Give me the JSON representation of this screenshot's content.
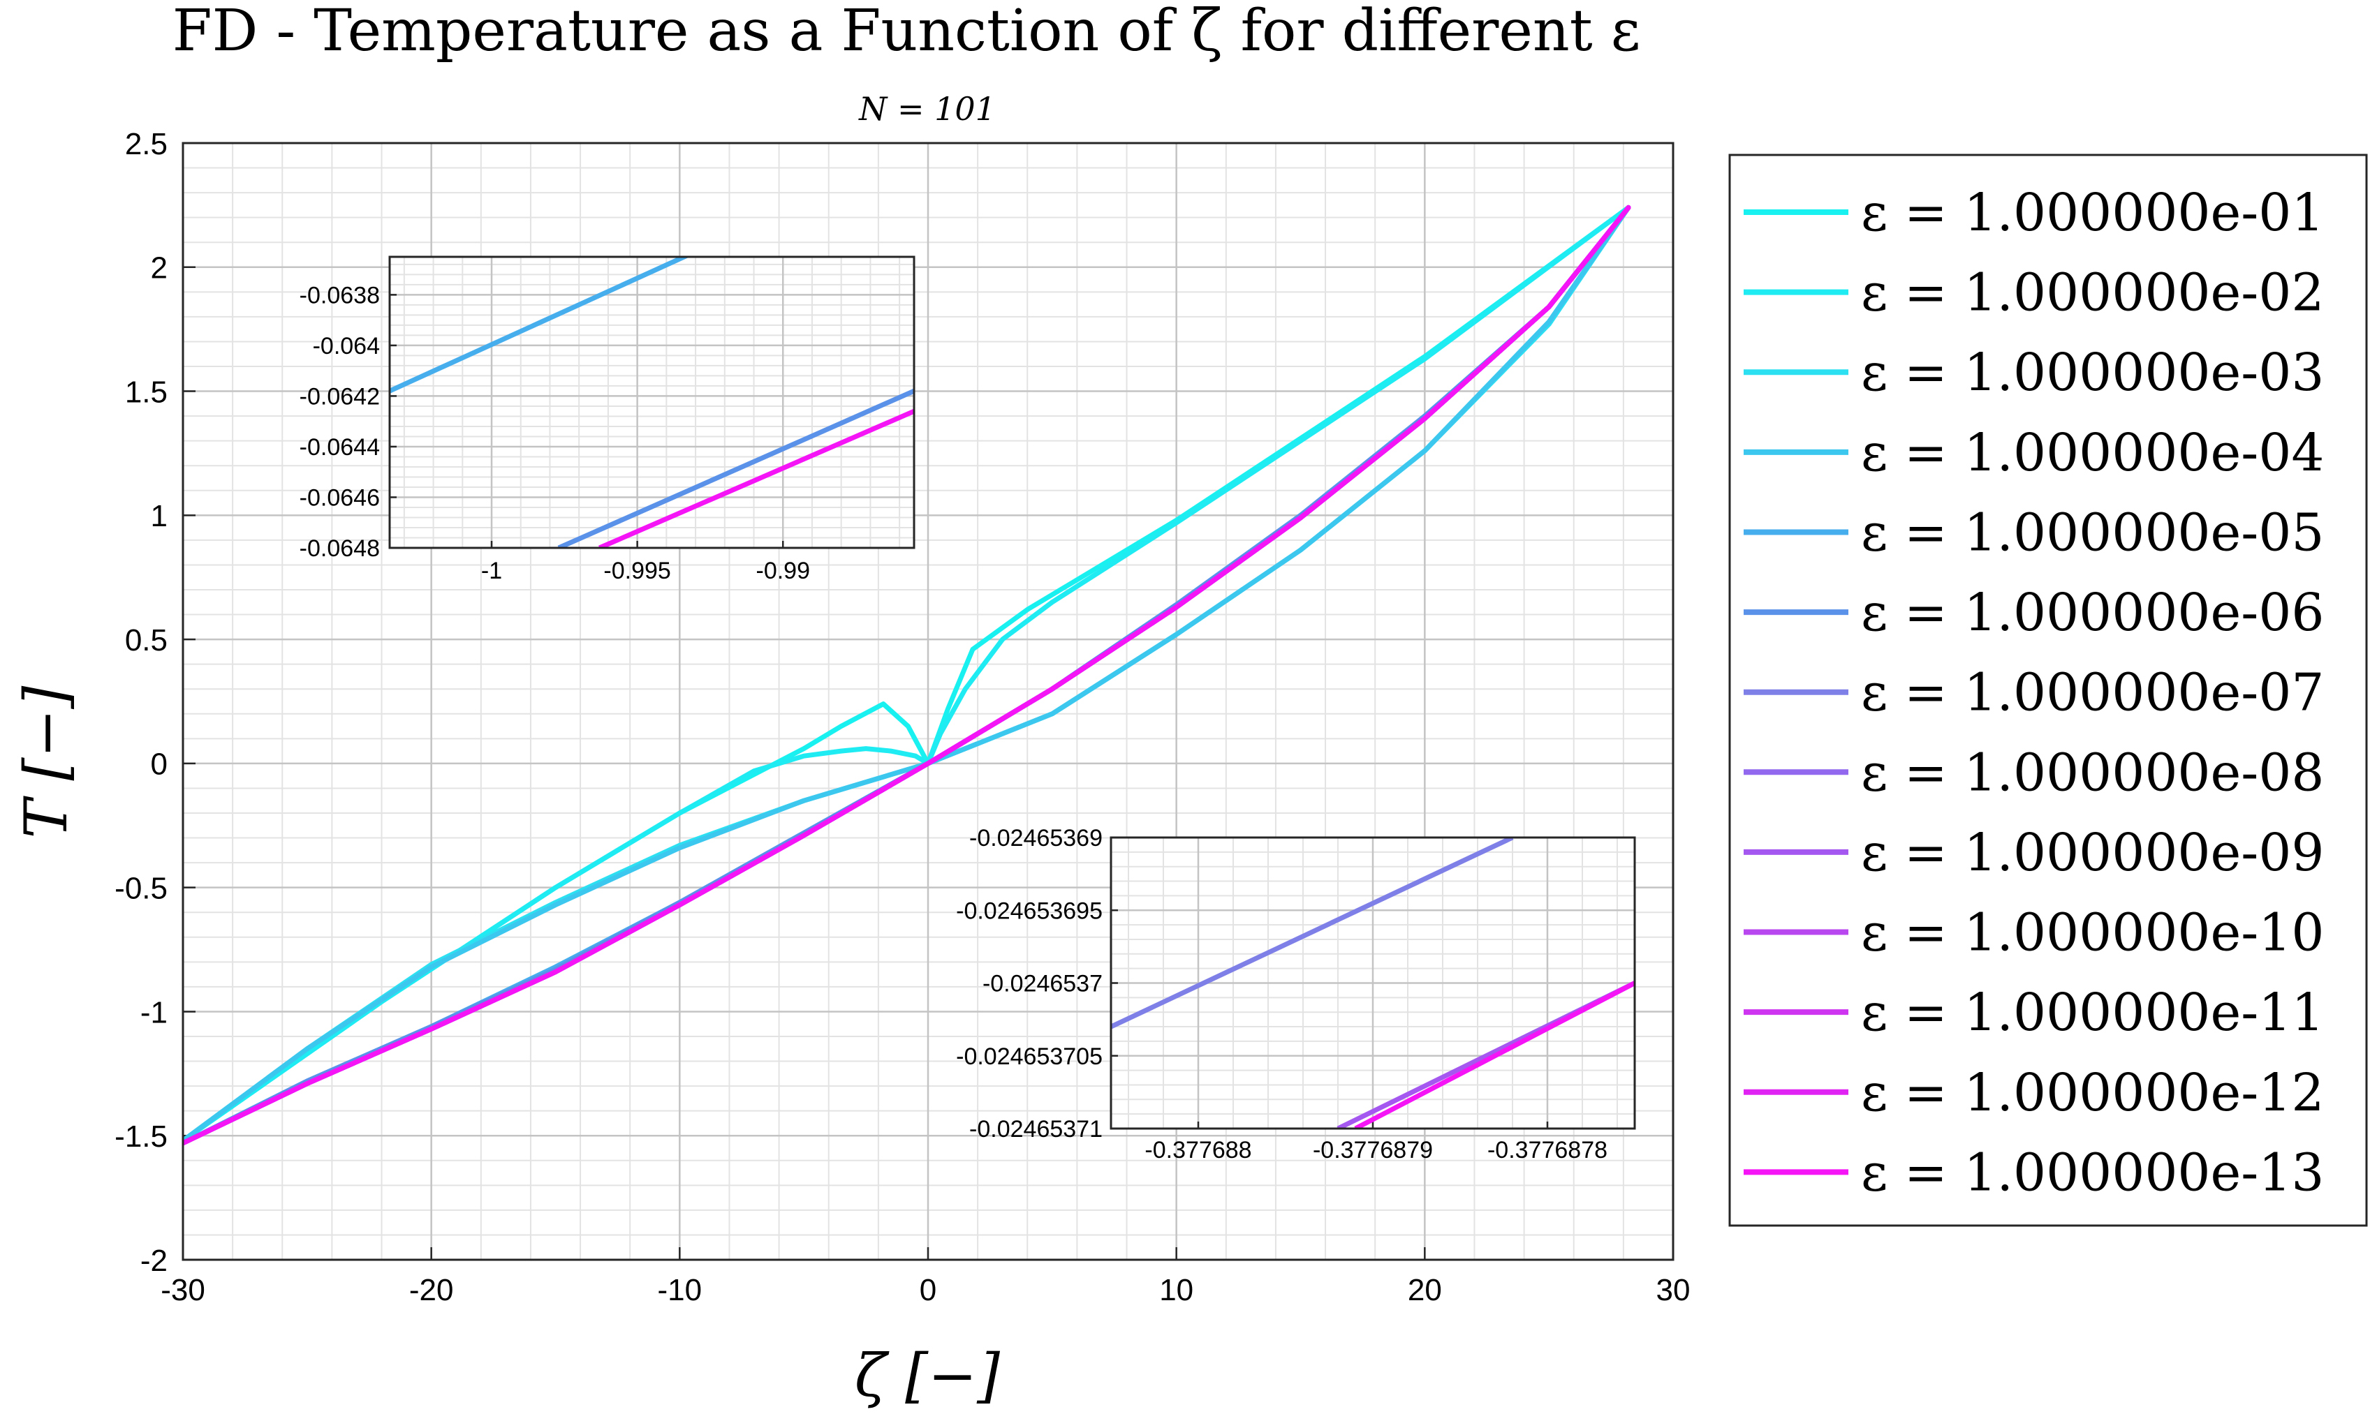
{
  "chart_data": {
    "type": "line",
    "title": "FD - Temperature as a Function of ζ for different ε",
    "subtitle": "N = 101",
    "xlabel": "ζ [−]",
    "ylabel": "T [−]",
    "xlim": [
      -30,
      30
    ],
    "ylim": [
      -2,
      2.5
    ],
    "xticks": [
      -30,
      -20,
      -10,
      0,
      10,
      20,
      30
    ],
    "xtick_labels": [
      "-30",
      "-20",
      "-10",
      "0",
      "10",
      "20",
      "30"
    ],
    "yticks": [
      -2,
      -1.5,
      -1,
      -0.5,
      0,
      0.5,
      1,
      1.5,
      2,
      2.5
    ],
    "ytick_labels": [
      "-2",
      "-1.5",
      "-1",
      "-0.5",
      "0",
      "0.5",
      "1",
      "1.5",
      "2",
      "2.5"
    ],
    "grid": true,
    "minor_grid": true,
    "legend_position": "outside-right",
    "series": [
      {
        "name": "ε = 1.000000e-01",
        "color": "#19f0f0",
        "x": [
          -30,
          -22,
          -15,
          -10,
          -5,
          -3.5,
          -1.8,
          -0.8,
          0,
          0.8,
          1.8,
          4,
          10,
          20,
          28.2
        ],
        "y": [
          -1.52,
          -0.96,
          -0.5,
          -0.2,
          0.06,
          0.15,
          0.24,
          0.15,
          0,
          0.22,
          0.46,
          0.62,
          0.98,
          1.64,
          2.24
        ]
      },
      {
        "name": "ε = 1.000000e-02",
        "color": "#1febf2",
        "x": [
          -30,
          -22,
          -15,
          -10,
          -7,
          -5,
          -3.5,
          -2.5,
          -1.5,
          -0.5,
          0,
          0.5,
          1.5,
          3,
          5,
          10,
          20,
          28.2
        ],
        "y": [
          -1.52,
          -0.96,
          -0.5,
          -0.2,
          -0.03,
          0.03,
          0.05,
          0.06,
          0.05,
          0.03,
          0,
          0.12,
          0.3,
          0.5,
          0.65,
          0.97,
          1.63,
          2.24
        ]
      },
      {
        "name": "ε = 1.000000e-03",
        "color": "#2ce0f2",
        "x": [
          -30,
          -25,
          -20,
          -15,
          -10,
          -5,
          0,
          5,
          10,
          15,
          20,
          25,
          28.2
        ],
        "y": [
          -1.52,
          -1.15,
          -0.81,
          -0.56,
          -0.33,
          -0.15,
          0,
          0.2,
          0.52,
          0.86,
          1.26,
          1.77,
          2.24
        ]
      },
      {
        "name": "ε = 1.000000e-04",
        "color": "#3cc7ef",
        "x": [
          -30,
          -25,
          -20,
          -15,
          -10,
          -5,
          0,
          5,
          10,
          15,
          20,
          25,
          28.2
        ],
        "y": [
          -1.52,
          -1.15,
          -0.82,
          -0.57,
          -0.34,
          -0.15,
          0,
          0.2,
          0.52,
          0.86,
          1.26,
          1.78,
          2.24
        ]
      },
      {
        "name": "ε = 1.000000e-05",
        "color": "#47aeee",
        "x": [
          -30,
          -25,
          -20,
          -15,
          -10,
          -5,
          0,
          5,
          10,
          15,
          20,
          25,
          28.2
        ],
        "y": [
          -1.53,
          -1.28,
          -1.06,
          -0.82,
          -0.56,
          -0.28,
          0,
          0.3,
          0.64,
          1.0,
          1.4,
          1.84,
          2.24
        ]
      },
      {
        "name": "ε = 1.000000e-06",
        "color": "#5a91e9",
        "x": [
          -30,
          -25,
          -20,
          -15,
          -10,
          -5,
          0,
          5,
          10,
          15,
          20,
          25,
          28.2
        ],
        "y": [
          -1.53,
          -1.28,
          -1.06,
          -0.83,
          -0.56,
          -0.28,
          0,
          0.3,
          0.64,
          1.0,
          1.4,
          1.84,
          2.24
        ]
      },
      {
        "name": "ε = 1.000000e-07",
        "color": "#7f7fe8",
        "x": [
          -30,
          -25,
          -20,
          -15,
          -10,
          -5,
          0,
          5,
          10,
          15,
          20,
          25,
          28.2
        ],
        "y": [
          -1.53,
          -1.29,
          -1.07,
          -0.84,
          -0.57,
          -0.29,
          0,
          0.3,
          0.63,
          0.99,
          1.39,
          1.84,
          2.24
        ]
      },
      {
        "name": "ε = 1.000000e-08",
        "color": "#9168ee",
        "x": [
          -30,
          -25,
          -20,
          -15,
          -10,
          -5,
          0,
          5,
          10,
          15,
          20,
          25,
          28.2
        ],
        "y": [
          -1.53,
          -1.29,
          -1.07,
          -0.84,
          -0.57,
          -0.29,
          0,
          0.3,
          0.63,
          0.99,
          1.39,
          1.84,
          2.24
        ]
      },
      {
        "name": "ε = 1.000000e-09",
        "color": "#a458ef",
        "x": [
          -30,
          -25,
          -20,
          -15,
          -10,
          -5,
          0,
          5,
          10,
          15,
          20,
          25,
          28.2
        ],
        "y": [
          -1.53,
          -1.29,
          -1.07,
          -0.84,
          -0.57,
          -0.29,
          0,
          0.3,
          0.63,
          0.99,
          1.39,
          1.84,
          2.24
        ]
      },
      {
        "name": "ε = 1.000000e-10",
        "color": "#b847f0",
        "x": [
          -30,
          -25,
          -20,
          -15,
          -10,
          -5,
          0,
          5,
          10,
          15,
          20,
          25,
          28.2
        ],
        "y": [
          -1.53,
          -1.29,
          -1.07,
          -0.84,
          -0.57,
          -0.29,
          0,
          0.3,
          0.63,
          0.99,
          1.39,
          1.84,
          2.24
        ]
      },
      {
        "name": "ε = 1.000000e-11",
        "color": "#cd35f1",
        "x": [
          -30,
          -25,
          -20,
          -15,
          -10,
          -5,
          0,
          5,
          10,
          15,
          20,
          25,
          28.2
        ],
        "y": [
          -1.53,
          -1.29,
          -1.07,
          -0.84,
          -0.57,
          -0.29,
          0,
          0.3,
          0.63,
          0.99,
          1.39,
          1.84,
          2.24
        ]
      },
      {
        "name": "ε = 1.000000e-12",
        "color": "#e022f3",
        "x": [
          -30,
          -25,
          -20,
          -15,
          -10,
          -5,
          0,
          5,
          10,
          15,
          20,
          25,
          28.2
        ],
        "y": [
          -1.53,
          -1.29,
          -1.07,
          -0.84,
          -0.57,
          -0.29,
          0,
          0.3,
          0.63,
          0.99,
          1.39,
          1.84,
          2.24
        ]
      },
      {
        "name": "ε = 1.000000e-13",
        "color": "#f514f5",
        "x": [
          -30,
          -25,
          -20,
          -15,
          -10,
          -5,
          0,
          5,
          10,
          15,
          20,
          25,
          28.2
        ],
        "y": [
          -1.53,
          -1.29,
          -1.07,
          -0.84,
          -0.57,
          -0.29,
          0,
          0.3,
          0.63,
          0.99,
          1.39,
          1.84,
          2.24
        ]
      }
    ],
    "insets": [
      {
        "xlim": [
          -1.0035,
          -0.9855
        ],
        "ylim": [
          -0.0648,
          -0.06365
        ],
        "xticks": [
          -1,
          -0.995,
          -0.99
        ],
        "xtick_labels": [
          "-1",
          "-0.995",
          "-0.99"
        ],
        "yticks": [
          -0.0638,
          -0.064,
          -0.0642,
          -0.0644,
          -0.0646,
          -0.0648
        ],
        "ytick_labels": [
          "-0.0638",
          "-0.064",
          "-0.0642",
          "-0.0644",
          "-0.0646",
          "-0.0648"
        ],
        "lines": [
          {
            "color": "#47aeee",
            "x": [
              -1.0035,
              -0.9932
            ],
            "y": [
              -0.06418,
              -0.06364
            ]
          },
          {
            "color": "#5a91e9",
            "x": [
              -0.9977,
              -0.9855
            ],
            "y": [
              -0.0648,
              -0.06418
            ]
          },
          {
            "color": "#f514f5",
            "x": [
              -0.9963,
              -0.9855
            ],
            "y": [
              -0.0648,
              -0.06426
            ]
          }
        ]
      },
      {
        "xlim": [
          -0.37768805,
          -0.37768775
        ],
        "ylim": [
          -0.02465371,
          -0.02465369
        ],
        "xticks": [
          -0.377688,
          -0.3776879,
          -0.3776878
        ],
        "xtick_labels": [
          "-0.377688",
          "-0.3776879",
          "-0.3776878"
        ],
        "yticks": [
          -0.02465369,
          -0.024653695,
          -0.0246537,
          -0.024653705,
          -0.02465371
        ],
        "ytick_labels": [
          "-0.02465369",
          "-0.024653695",
          "-0.0246537",
          "-0.024653705",
          "-0.02465371"
        ],
        "lines": [
          {
            "color": "#7f7fe8",
            "x": [
              -0.37768805,
              -0.37768782
            ],
            "y": [
              -0.024653703,
              -0.02465369
            ]
          },
          {
            "color": "#a458ef",
            "x": [
              -0.37768792,
              -0.37768775
            ],
            "y": [
              -0.02465371,
              -0.0246537
            ]
          },
          {
            "color": "#f514f5",
            "x": [
              -0.37768791,
              -0.37768775
            ],
            "y": [
              -0.02465371,
              -0.0246537
            ]
          }
        ]
      }
    ]
  }
}
